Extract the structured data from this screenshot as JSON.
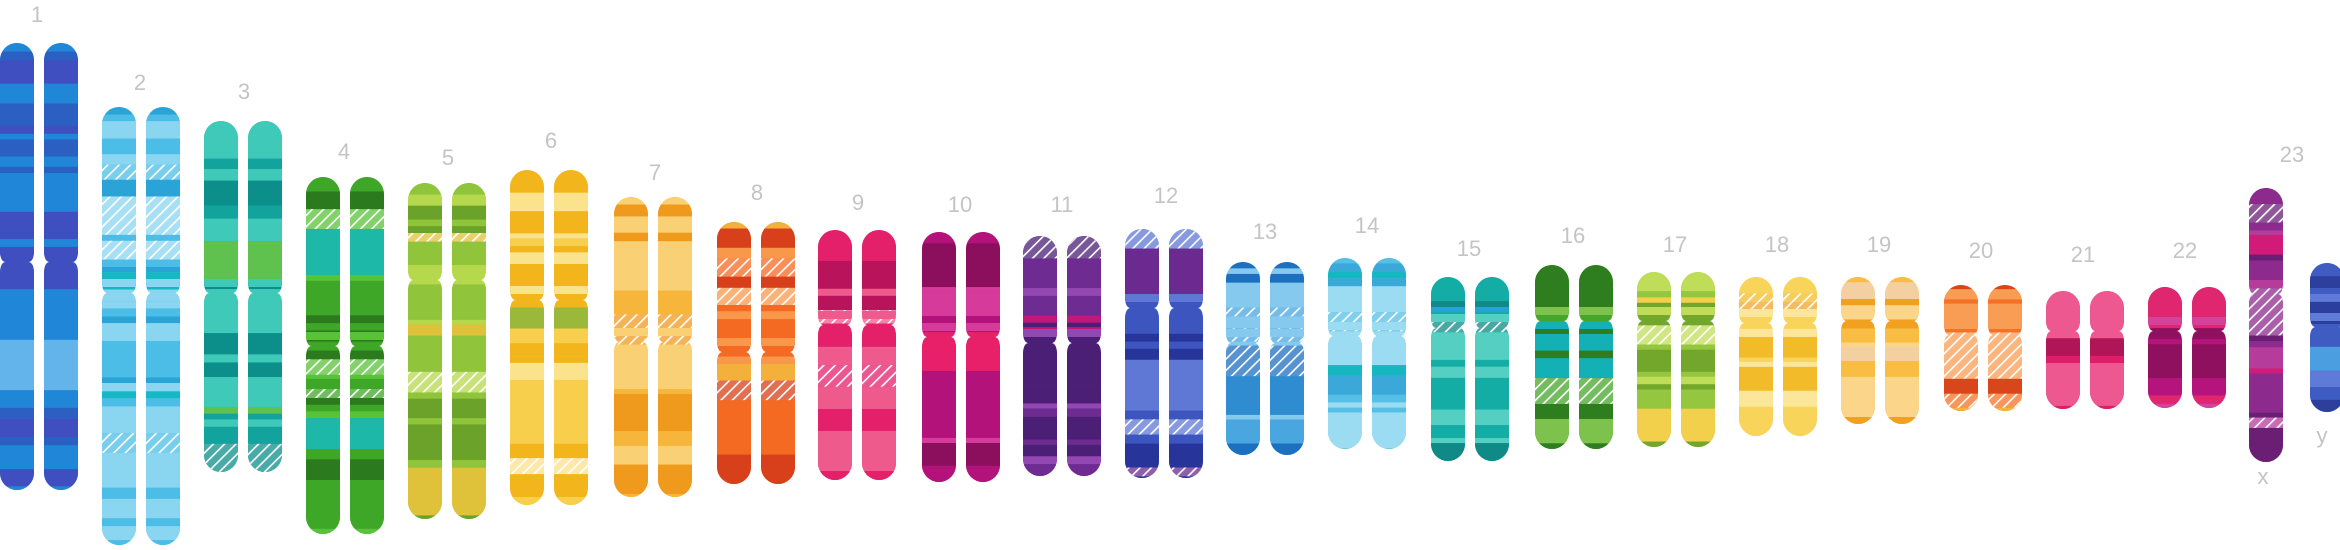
{
  "chromosomes": [
    {
      "label": "1",
      "colors": [
        "#1f86d8",
        "#2b5fc2",
        "#3f4fbf",
        "#62b4ea"
      ]
    },
    {
      "label": "2",
      "colors": [
        "#4cbde6",
        "#2aa3d6",
        "#8ad5f0",
        "#16b8c4"
      ]
    },
    {
      "label": "3",
      "colors": [
        "#11a39c",
        "#0c8f8b",
        "#3ec9b8",
        "#5fc24f"
      ]
    },
    {
      "label": "4",
      "colors": [
        "#3fa727",
        "#2c7a1e",
        "#58c238",
        "#1db8a8"
      ]
    },
    {
      "label": "5",
      "colors": [
        "#8fc43b",
        "#6aa22a",
        "#b6d84c",
        "#e0c23a"
      ]
    },
    {
      "label": "6",
      "colors": [
        "#f8cf4c",
        "#f3b51c",
        "#fbe28c",
        "#9ab83a"
      ]
    },
    {
      "label": "7",
      "colors": [
        "#f6b63b",
        "#f09a1d",
        "#fad075",
        "#ef6b22"
      ]
    },
    {
      "label": "8",
      "colors": [
        "#f56a23",
        "#d7401a",
        "#f9984b",
        "#f3b03a"
      ]
    },
    {
      "label": "9",
      "colors": [
        "#e4206b",
        "#b8135b",
        "#ef5a8c",
        "#f0782e"
      ]
    },
    {
      "label": "10",
      "colors": [
        "#b3127a",
        "#8c0f5e",
        "#d63a9a",
        "#e8206a"
      ]
    },
    {
      "label": "11",
      "colors": [
        "#6e2c92",
        "#4b1f75",
        "#9247b2",
        "#c01778"
      ]
    },
    {
      "label": "12",
      "colors": [
        "#3d56bf",
        "#27359a",
        "#5f78d6",
        "#6b2a90"
      ]
    },
    {
      "label": "13",
      "colors": [
        "#4aa6df",
        "#2f8cd0",
        "#86c9ee",
        "#1d6fc0"
      ]
    },
    {
      "label": "14",
      "colors": [
        "#55bfe6",
        "#3aa9da",
        "#9bdcf2",
        "#15b7c0"
      ]
    },
    {
      "label": "15",
      "colors": [
        "#14ada6",
        "#0f8a86",
        "#55cfc2",
        "#2aa0d8"
      ]
    },
    {
      "label": "16",
      "colors": [
        "#46a62b",
        "#2e7e1f",
        "#7cc24c",
        "#13b0b5"
      ]
    },
    {
      "label": "17",
      "colors": [
        "#95c640",
        "#72a72c",
        "#c0dd5a",
        "#f2d04c"
      ]
    },
    {
      "label": "18",
      "colors": [
        "#f9d45a",
        "#f2bb2a",
        "#fce69a",
        "#f3a32a"
      ]
    },
    {
      "label": "19",
      "colors": [
        "#f8bd42",
        "#f1a020",
        "#fbd68a",
        "#f4d0a0"
      ]
    },
    {
      "label": "20",
      "colors": [
        "#f57126",
        "#d9461b",
        "#f99d55",
        "#f6b53a"
      ]
    },
    {
      "label": "21",
      "colors": [
        "#e01d68",
        "#b01557",
        "#ee5890",
        "#d23a7a"
      ]
    },
    {
      "label": "22",
      "colors": [
        "#b5147c",
        "#8e105f",
        "#d4429c",
        "#e0266e"
      ]
    },
    {
      "label": "23",
      "sub": "x",
      "colors": [
        "#8c2a8e",
        "#6a1f75",
        "#b63c9c",
        "#d21a78"
      ]
    },
    {
      "label": "",
      "sub": "y",
      "colors": [
        "#3f5cc3",
        "#2d3f9d",
        "#5f7bd8",
        "#4b9ee0"
      ]
    }
  ]
}
